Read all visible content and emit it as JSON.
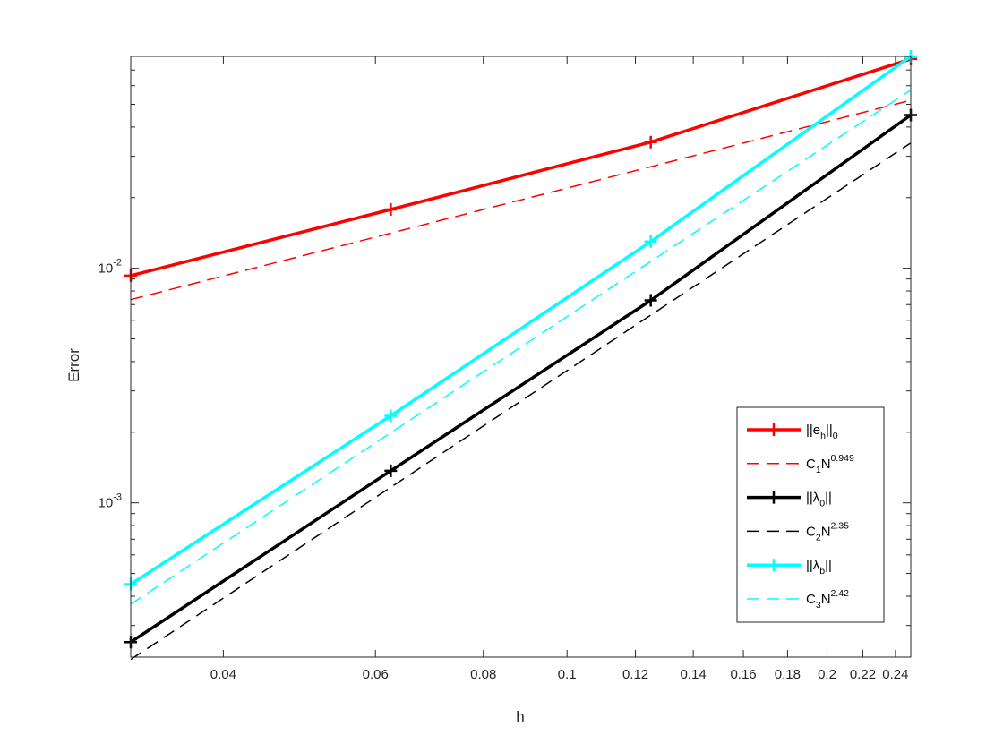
{
  "chart_data": {
    "type": "line",
    "title": "",
    "xlabel": "h",
    "ylabel": "Error",
    "xscale": "log",
    "yscale": "log",
    "xlim": [
      0.03125,
      0.25
    ],
    "ylim": [
      0.00022,
      0.08
    ],
    "xticks": [
      0.04,
      0.06,
      0.08,
      0.1,
      0.12,
      0.14,
      0.16,
      0.18,
      0.2,
      0.22,
      0.24
    ],
    "xtick_labels": [
      "0.04",
      "0.06",
      "0.08",
      "0.1",
      "0.12",
      "0.14",
      "0.16",
      "0.18",
      "0.2",
      "0.22",
      "0.24"
    ],
    "yticks": [
      {
        "value": 0.01,
        "base": "10",
        "exp": "-2"
      },
      {
        "value": 0.001,
        "base": "10",
        "exp": "-3"
      }
    ],
    "grid": false,
    "box": true,
    "legend_position": "bottom-right",
    "series": [
      {
        "id": "eh",
        "legend": {
          "pre": "||e",
          "sub": "h",
          "post": "||",
          "sub2": "0",
          "sup": ""
        },
        "color": "#ff0000",
        "style": "solid",
        "marker": "+",
        "x": [
          0.03125,
          0.0625,
          0.125,
          0.25
        ],
        "y": [
          0.0093,
          0.0178,
          0.0345,
          0.078
        ]
      },
      {
        "id": "c1",
        "legend": {
          "pre": "C",
          "sub": "1",
          "post": "N",
          "sub2": "",
          "sup": "0.949"
        },
        "color": "#ff0000",
        "style": "dashed",
        "marker": "",
        "x": [
          0.03125,
          0.25
        ],
        "y": [
          0.00735,
          0.052
        ]
      },
      {
        "id": "lam0",
        "legend": {
          "pre": "||λ",
          "sub": "0",
          "post": "||",
          "sub2": "",
          "sup": ""
        },
        "color": "#000000",
        "style": "solid",
        "marker": "+",
        "x": [
          0.03125,
          0.0625,
          0.125,
          0.25
        ],
        "y": [
          0.000255,
          0.00137,
          0.0073,
          0.045
        ]
      },
      {
        "id": "c2",
        "legend": {
          "pre": "C",
          "sub": "2",
          "post": "N",
          "sub2": "",
          "sup": "2.35"
        },
        "color": "#000000",
        "style": "dashed",
        "marker": "",
        "x": [
          0.03125,
          0.25
        ],
        "y": [
          0.000215,
          0.0342
        ]
      },
      {
        "id": "lamb",
        "legend": {
          "pre": "||λ",
          "sub": "b",
          "post": "||",
          "sub2": "",
          "sup": ""
        },
        "color": "#00ffff",
        "style": "solid",
        "marker": "+",
        "x": [
          0.03125,
          0.0625,
          0.125,
          0.25
        ],
        "y": [
          0.00045,
          0.00235,
          0.013,
          0.08
        ]
      },
      {
        "id": "c3",
        "legend": {
          "pre": "C",
          "sub": "3",
          "post": "N",
          "sub2": "",
          "sup": "2.42"
        },
        "color": "#00ffff",
        "style": "dashed",
        "marker": "",
        "x": [
          0.03125,
          0.25
        ],
        "y": [
          0.00037,
          0.0575
        ]
      }
    ]
  }
}
